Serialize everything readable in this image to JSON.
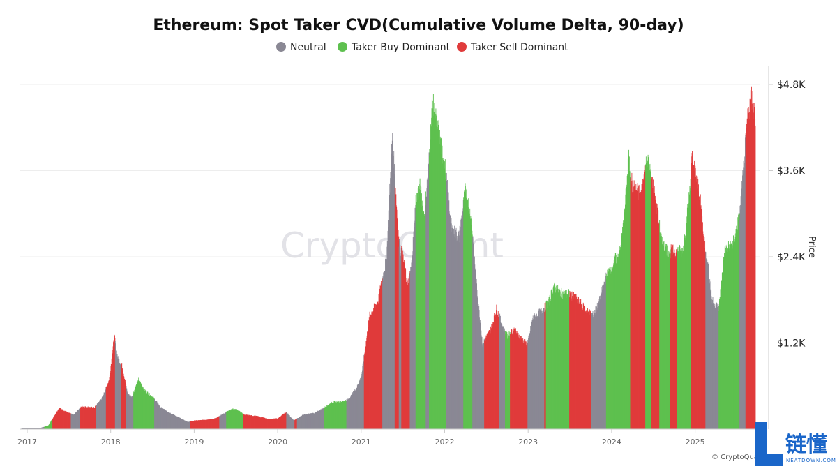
{
  "chart_data": {
    "type": "bar",
    "title": "Ethereum: Spot Taker CVD(Cumulative Volume Delta, 90-day)",
    "y_axis_title": "Price",
    "ylim": [
      0,
      4800
    ],
    "y_ticks": [
      {
        "value": 1200,
        "label": "$1.2K"
      },
      {
        "value": 2400,
        "label": "$2.4K"
      },
      {
        "value": 3600,
        "label": "$3.6K"
      },
      {
        "value": 4800,
        "label": "$4.8K"
      }
    ],
    "x_ticks": [
      "2017",
      "2018",
      "2019",
      "2020",
      "2021",
      "2022",
      "2023",
      "2024",
      "2025"
    ],
    "x_start_year": 2017.0,
    "legend": [
      {
        "key": "neutral",
        "name": "Neutral",
        "color": "#8a8894"
      },
      {
        "key": "buy",
        "name": "Taker Buy Dominant",
        "color": "#5ec04f"
      },
      {
        "key": "sell",
        "name": "Taker Sell Dominant",
        "color": "#e03b3b"
      }
    ],
    "legend_position": "top-center",
    "grid": true,
    "price_points": [
      [
        2016.93,
        10
      ],
      [
        2017.15,
        15
      ],
      [
        2017.25,
        50
      ],
      [
        2017.38,
        300
      ],
      [
        2017.45,
        250
      ],
      [
        2017.55,
        200
      ],
      [
        2017.65,
        320
      ],
      [
        2017.8,
        300
      ],
      [
        2017.9,
        450
      ],
      [
        2017.98,
        700
      ],
      [
        2018.04,
        1300
      ],
      [
        2018.08,
        1000
      ],
      [
        2018.13,
        900
      ],
      [
        2018.2,
        500
      ],
      [
        2018.25,
        450
      ],
      [
        2018.33,
        700
      ],
      [
        2018.4,
        550
      ],
      [
        2018.5,
        450
      ],
      [
        2018.6,
        300
      ],
      [
        2018.75,
        200
      ],
      [
        2018.92,
        100
      ],
      [
        2019.0,
        120
      ],
      [
        2019.15,
        130
      ],
      [
        2019.25,
        150
      ],
      [
        2019.35,
        220
      ],
      [
        2019.45,
        280
      ],
      [
        2019.5,
        280
      ],
      [
        2019.6,
        200
      ],
      [
        2019.75,
        180
      ],
      [
        2019.9,
        140
      ],
      [
        2020.0,
        150
      ],
      [
        2020.1,
        240
      ],
      [
        2020.19,
        120
      ],
      [
        2020.3,
        200
      ],
      [
        2020.45,
        230
      ],
      [
        2020.55,
        300
      ],
      [
        2020.65,
        380
      ],
      [
        2020.75,
        380
      ],
      [
        2020.85,
        420
      ],
      [
        2020.95,
        600
      ],
      [
        2021.0,
        750
      ],
      [
        2021.1,
        1600
      ],
      [
        2021.2,
        1800
      ],
      [
        2021.3,
        2400
      ],
      [
        2021.37,
        4100
      ],
      [
        2021.45,
        2600
      ],
      [
        2021.5,
        2400
      ],
      [
        2021.55,
        2000
      ],
      [
        2021.6,
        2300
      ],
      [
        2021.65,
        3200
      ],
      [
        2021.7,
        3400
      ],
      [
        2021.75,
        3000
      ],
      [
        2021.8,
        3600
      ],
      [
        2021.85,
        4600
      ],
      [
        2021.95,
        4000
      ],
      [
        2022.0,
        3700
      ],
      [
        2022.08,
        2800
      ],
      [
        2022.17,
        2700
      ],
      [
        2022.25,
        3400
      ],
      [
        2022.32,
        2900
      ],
      [
        2022.38,
        2000
      ],
      [
        2022.45,
        1200
      ],
      [
        2022.55,
        1400
      ],
      [
        2022.62,
        1700
      ],
      [
        2022.7,
        1400
      ],
      [
        2022.75,
        1300
      ],
      [
        2022.82,
        1400
      ],
      [
        2022.9,
        1300
      ],
      [
        2022.97,
        1200
      ],
      [
        2023.0,
        1250
      ],
      [
        2023.05,
        1550
      ],
      [
        2023.15,
        1650
      ],
      [
        2023.25,
        1800
      ],
      [
        2023.3,
        2000
      ],
      [
        2023.4,
        1900
      ],
      [
        2023.5,
        1900
      ],
      [
        2023.6,
        1800
      ],
      [
        2023.7,
        1650
      ],
      [
        2023.78,
        1600
      ],
      [
        2023.85,
        1800
      ],
      [
        2023.92,
        2100
      ],
      [
        2024.0,
        2300
      ],
      [
        2024.1,
        2500
      ],
      [
        2024.15,
        3000
      ],
      [
        2024.2,
        3800
      ],
      [
        2024.25,
        3400
      ],
      [
        2024.35,
        3300
      ],
      [
        2024.42,
        3800
      ],
      [
        2024.5,
        3400
      ],
      [
        2024.55,
        3000
      ],
      [
        2024.6,
        2600
      ],
      [
        2024.68,
        2500
      ],
      [
        2024.75,
        2500
      ],
      [
        2024.85,
        2500
      ],
      [
        2024.92,
        3200
      ],
      [
        2024.96,
        3800
      ],
      [
        2025.0,
        3600
      ],
      [
        2025.05,
        3300
      ],
      [
        2025.1,
        2700
      ],
      [
        2025.15,
        2300
      ],
      [
        2025.2,
        1800
      ],
      [
        2025.28,
        1700
      ],
      [
        2025.35,
        2500
      ],
      [
        2025.45,
        2600
      ],
      [
        2025.53,
        3000
      ],
      [
        2025.58,
        3700
      ],
      [
        2025.62,
        4300
      ],
      [
        2025.67,
        4700
      ],
      [
        2025.72,
        4400
      ]
    ],
    "regimes": [
      {
        "start": 2016.93,
        "end": 2017.2,
        "state": "neutral"
      },
      {
        "start": 2017.2,
        "end": 2017.3,
        "state": "buy"
      },
      {
        "start": 2017.3,
        "end": 2017.52,
        "state": "sell"
      },
      {
        "start": 2017.52,
        "end": 2017.63,
        "state": "neutral"
      },
      {
        "start": 2017.63,
        "end": 2017.7,
        "state": "sell"
      },
      {
        "start": 2017.7,
        "end": 2017.82,
        "state": "sell"
      },
      {
        "start": 2017.82,
        "end": 2017.94,
        "state": "neutral"
      },
      {
        "start": 2017.94,
        "end": 2018.05,
        "state": "sell"
      },
      {
        "start": 2018.05,
        "end": 2018.12,
        "state": "neutral"
      },
      {
        "start": 2018.12,
        "end": 2018.18,
        "state": "sell"
      },
      {
        "start": 2018.18,
        "end": 2018.27,
        "state": "neutral"
      },
      {
        "start": 2018.27,
        "end": 2018.52,
        "state": "buy"
      },
      {
        "start": 2018.52,
        "end": 2018.95,
        "state": "neutral"
      },
      {
        "start": 2018.95,
        "end": 2019.3,
        "state": "sell"
      },
      {
        "start": 2019.3,
        "end": 2019.38,
        "state": "neutral"
      },
      {
        "start": 2019.38,
        "end": 2019.58,
        "state": "buy"
      },
      {
        "start": 2019.58,
        "end": 2020.1,
        "state": "sell"
      },
      {
        "start": 2020.1,
        "end": 2020.2,
        "state": "neutral"
      },
      {
        "start": 2020.2,
        "end": 2020.23,
        "state": "sell"
      },
      {
        "start": 2020.23,
        "end": 2020.55,
        "state": "neutral"
      },
      {
        "start": 2020.55,
        "end": 2020.82,
        "state": "buy"
      },
      {
        "start": 2020.82,
        "end": 2021.03,
        "state": "neutral"
      },
      {
        "start": 2021.03,
        "end": 2021.25,
        "state": "sell"
      },
      {
        "start": 2021.25,
        "end": 2021.4,
        "state": "neutral"
      },
      {
        "start": 2021.4,
        "end": 2021.45,
        "state": "sell"
      },
      {
        "start": 2021.45,
        "end": 2021.48,
        "state": "neutral"
      },
      {
        "start": 2021.48,
        "end": 2021.58,
        "state": "sell"
      },
      {
        "start": 2021.58,
        "end": 2021.65,
        "state": "neutral"
      },
      {
        "start": 2021.65,
        "end": 2021.77,
        "state": "buy"
      },
      {
        "start": 2021.77,
        "end": 2021.81,
        "state": "neutral"
      },
      {
        "start": 2021.81,
        "end": 2022.01,
        "state": "buy"
      },
      {
        "start": 2022.01,
        "end": 2022.22,
        "state": "neutral"
      },
      {
        "start": 2022.22,
        "end": 2022.33,
        "state": "buy"
      },
      {
        "start": 2022.33,
        "end": 2022.47,
        "state": "neutral"
      },
      {
        "start": 2022.47,
        "end": 2022.65,
        "state": "sell"
      },
      {
        "start": 2022.65,
        "end": 2022.72,
        "state": "neutral"
      },
      {
        "start": 2022.72,
        "end": 2022.78,
        "state": "buy"
      },
      {
        "start": 2022.78,
        "end": 2022.99,
        "state": "sell"
      },
      {
        "start": 2022.99,
        "end": 2023.19,
        "state": "neutral"
      },
      {
        "start": 2023.19,
        "end": 2023.21,
        "state": "sell"
      },
      {
        "start": 2023.21,
        "end": 2023.49,
        "state": "buy"
      },
      {
        "start": 2023.49,
        "end": 2023.75,
        "state": "sell"
      },
      {
        "start": 2023.75,
        "end": 2023.93,
        "state": "neutral"
      },
      {
        "start": 2023.93,
        "end": 2024.22,
        "state": "buy"
      },
      {
        "start": 2024.22,
        "end": 2024.4,
        "state": "sell"
      },
      {
        "start": 2024.4,
        "end": 2024.47,
        "state": "buy"
      },
      {
        "start": 2024.47,
        "end": 2024.57,
        "state": "sell"
      },
      {
        "start": 2024.57,
        "end": 2024.7,
        "state": "buy"
      },
      {
        "start": 2024.7,
        "end": 2024.78,
        "state": "sell"
      },
      {
        "start": 2024.78,
        "end": 2024.95,
        "state": "buy"
      },
      {
        "start": 2024.95,
        "end": 2025.12,
        "state": "sell"
      },
      {
        "start": 2025.12,
        "end": 2025.28,
        "state": "neutral"
      },
      {
        "start": 2025.28,
        "end": 2025.53,
        "state": "buy"
      },
      {
        "start": 2025.53,
        "end": 2025.6,
        "state": "neutral"
      },
      {
        "start": 2025.6,
        "end": 2025.74,
        "state": "sell"
      }
    ]
  },
  "watermark": "CryptoQuant",
  "credit": "© CryptoQua",
  "logo": {
    "cn": "链懂",
    "en": "NEATDOWN.COM"
  }
}
